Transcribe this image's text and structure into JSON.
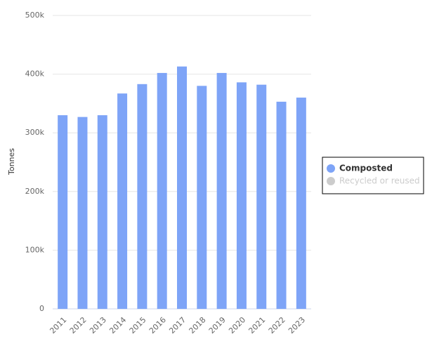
{
  "chart_data": {
    "type": "bar",
    "y_label": "Tonnes",
    "categories": [
      "2011",
      "2012",
      "2013",
      "2014",
      "2015",
      "2016",
      "2017",
      "2018",
      "2019",
      "2020",
      "2021",
      "2022",
      "2023"
    ],
    "series": [
      {
        "name": "Composted",
        "color": "#7ea4f7",
        "values": [
          330000,
          327000,
          330000,
          367000,
          383000,
          402000,
          413000,
          380000,
          402000,
          386000,
          382000,
          353000,
          360000
        ]
      },
      {
        "name": "Recycled or reused",
        "color": "#cccccc",
        "hidden": true,
        "values": [
          null,
          null,
          null,
          null,
          null,
          null,
          null,
          null,
          null,
          null,
          null,
          null,
          null
        ]
      }
    ],
    "ylim": [
      0,
      500000
    ],
    "yticks": [
      0,
      {
        "value": 100000,
        "label": "100k"
      },
      {
        "value": 200000,
        "label": "200k"
      },
      {
        "value": 300000,
        "label": "300k"
      },
      {
        "value": 400000,
        "label": "400k"
      },
      {
        "value": 500000,
        "label": "500k"
      }
    ],
    "grid": true,
    "legend": "right"
  }
}
